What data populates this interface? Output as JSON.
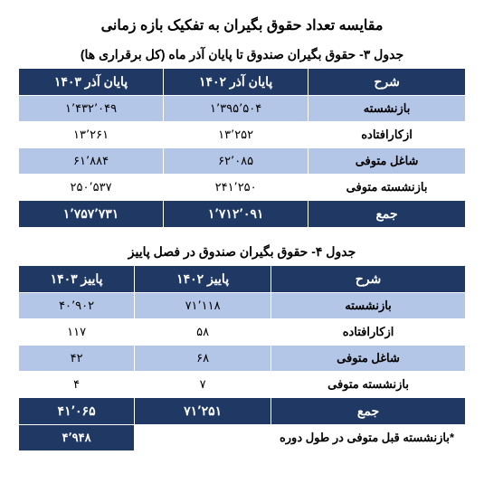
{
  "page_title": "مقایسه تعداد حقوق بگیران به تفکیک بازه زمانی",
  "table3": {
    "caption": "جدول ۳- حقوق بگیران صندوق تا پایان آذر ماه  (کل برقراری ها)",
    "headers": {
      "c1": "شرح",
      "c2": "پایان آذر ۱۴۰۲",
      "c3": "پایان آذر ۱۴۰۳"
    },
    "rows": [
      {
        "label": "بازنشسته",
        "v2": "۱٬۳۹۵٬۵۰۴",
        "v3": "۱٬۴۳۲٬۰۴۹"
      },
      {
        "label": "ازکارافتاده",
        "v2": "۱۳٬۲۵۲",
        "v3": "۱۳٬۲۶۱"
      },
      {
        "label": "شاغل متوفی",
        "v2": "۶۲٬۰۸۵",
        "v3": "۶۱٬۸۸۴"
      },
      {
        "label": "بازنشسته متوفی",
        "v2": "۲۴۱٬۲۵۰",
        "v3": "۲۵۰٬۵۳۷"
      }
    ],
    "total": {
      "label": "جمع",
      "v2": "۱٬۷۱۲٬۰۹۱",
      "v3": "۱٬۷۵۷٬۷۳۱"
    }
  },
  "table4": {
    "caption": "جدول ۴- حقوق بگیران صندوق در فصل پاییز",
    "headers": {
      "c1": "شرح",
      "c2": "پاییز ۱۴۰۲",
      "c3": "پاییز ۱۴۰۳"
    },
    "rows": [
      {
        "label": "بازنشسته",
        "v2": "۷۱٬۱۱۸",
        "v3": "۴۰٬۹۰۲"
      },
      {
        "label": "ازکارافتاده",
        "v2": "۵۸",
        "v3": "۱۱۷"
      },
      {
        "label": "شاغل متوفی",
        "v2": "۶۸",
        "v3": "۴۲"
      },
      {
        "label": "بازنشسته متوفی",
        "v2": "۷",
        "v3": "۴"
      }
    ],
    "total": {
      "label": "جمع",
      "v2": "۷۱٬۲۵۱",
      "v3": "۴۱٬۰۶۵"
    },
    "footer": {
      "label": "*بازنشسته قبل متوفی در طول دوره",
      "value": "۴٬۹۴۸"
    }
  }
}
